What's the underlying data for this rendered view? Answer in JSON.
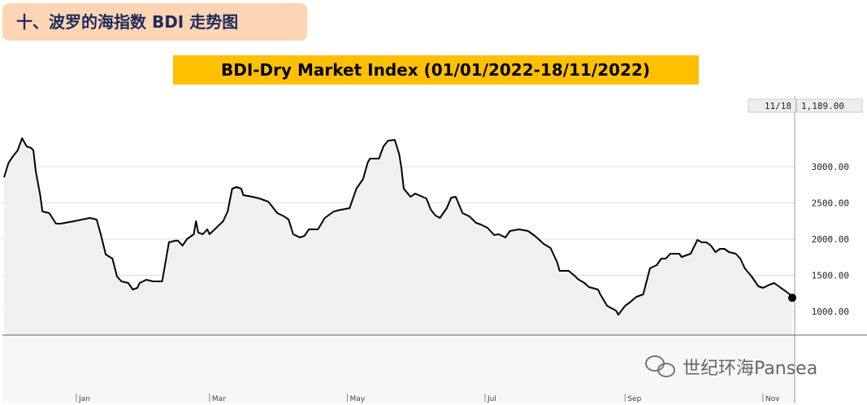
{
  "header": {
    "title": "十、波罗的海指数 BDI 走势图"
  },
  "chart_data": {
    "type": "line",
    "title": "BDI-Dry Market Index (01/01/2022-18/11/2022)",
    "last_date_label": "11/18",
    "last_value_label": "1,189.00",
    "watermark": "世纪环海Pansea",
    "color": "#000000",
    "fill_color": "#f0f0f0",
    "grid": true,
    "xlim": [
      0,
      349
    ],
    "xticks": [
      {
        "value": 32,
        "label": "Jan"
      },
      {
        "value": 91,
        "label": "Mar"
      },
      {
        "value": 152,
        "label": "May"
      },
      {
        "value": 213,
        "label": "Jul"
      },
      {
        "value": 275,
        "label": "Sep"
      },
      {
        "value": 336,
        "label": "Nov"
      }
    ],
    "ylim": [
      674,
      3955
    ],
    "yticks": [
      {
        "value": 1000,
        "label": "1000.00"
      },
      {
        "value": 1500,
        "label": "1500.00"
      },
      {
        "value": 2000,
        "label": "2000.00"
      },
      {
        "value": 2500,
        "label": "2500.00"
      },
      {
        "value": 3000,
        "label": "3000.00"
      }
    ],
    "x": [
      0,
      2,
      4,
      6,
      8,
      10,
      12,
      13,
      14,
      16,
      17,
      20,
      23,
      25,
      31,
      38,
      41,
      43,
      45,
      48,
      50,
      52,
      55,
      57,
      59,
      60,
      63,
      66,
      70,
      73,
      76,
      77,
      79,
      81,
      84,
      85,
      86,
      88,
      90,
      91,
      94,
      97,
      99,
      101,
      103,
      105,
      106,
      110,
      113,
      117,
      121,
      124,
      126,
      128,
      131,
      133,
      135,
      139,
      142,
      146,
      149,
      153,
      156,
      159,
      161,
      162,
      166,
      168,
      170,
      173,
      175,
      176,
      177,
      180,
      182,
      187,
      189,
      191,
      193,
      196,
      198,
      200,
      203,
      206,
      209,
      211,
      214,
      217,
      219,
      222,
      224,
      228,
      232,
      235,
      239,
      242,
      245,
      246,
      250,
      253,
      254,
      257,
      259,
      263,
      264,
      267,
      271,
      272,
      275,
      277,
      280,
      283,
      286,
      289,
      291,
      293,
      295,
      299,
      300,
      304,
      307,
      309,
      311,
      313,
      315,
      317,
      319,
      321,
      324,
      326,
      328,
      331,
      334,
      336,
      339,
      341,
      343,
      345,
      348,
      349
    ],
    "values": [
      2854,
      3056,
      3146,
      3225,
      3393,
      3281,
      3258,
      3225,
      2944,
      2607,
      2382,
      2360,
      2213,
      2213,
      2247,
      2292,
      2270,
      2045,
      1787,
      1730,
      1483,
      1416,
      1393,
      1303,
      1326,
      1393,
      1438,
      1416,
      1416,
      1955,
      1978,
      1978,
      1910,
      2000,
      2067,
      2247,
      2090,
      2067,
      2135,
      2067,
      2157,
      2247,
      2382,
      2697,
      2719,
      2697,
      2607,
      2584,
      2562,
      2517,
      2360,
      2315,
      2270,
      2067,
      2022,
      2045,
      2135,
      2135,
      2292,
      2382,
      2404,
      2427,
      2697,
      2831,
      3056,
      3112,
      3112,
      3281,
      3360,
      3371,
      3169,
      2966,
      2697,
      2584,
      2629,
      2562,
      2404,
      2326,
      2292,
      2427,
      2573,
      2584,
      2360,
      2315,
      2225,
      2202,
      2157,
      2056,
      2067,
      2022,
      2112,
      2135,
      2112,
      2045,
      1933,
      1876,
      1674,
      1562,
      1562,
      1483,
      1449,
      1393,
      1337,
      1303,
      1236,
      1079,
      1011,
      955,
      1079,
      1124,
      1202,
      1236,
      1596,
      1640,
      1730,
      1730,
      1798,
      1798,
      1753,
      1798,
      1989,
      1955,
      1955,
      1910,
      1820,
      1865,
      1865,
      1820,
      1798,
      1730,
      1596,
      1483,
      1348,
      1326,
      1371,
      1393,
      1348,
      1303,
      1236,
      1189
    ]
  }
}
